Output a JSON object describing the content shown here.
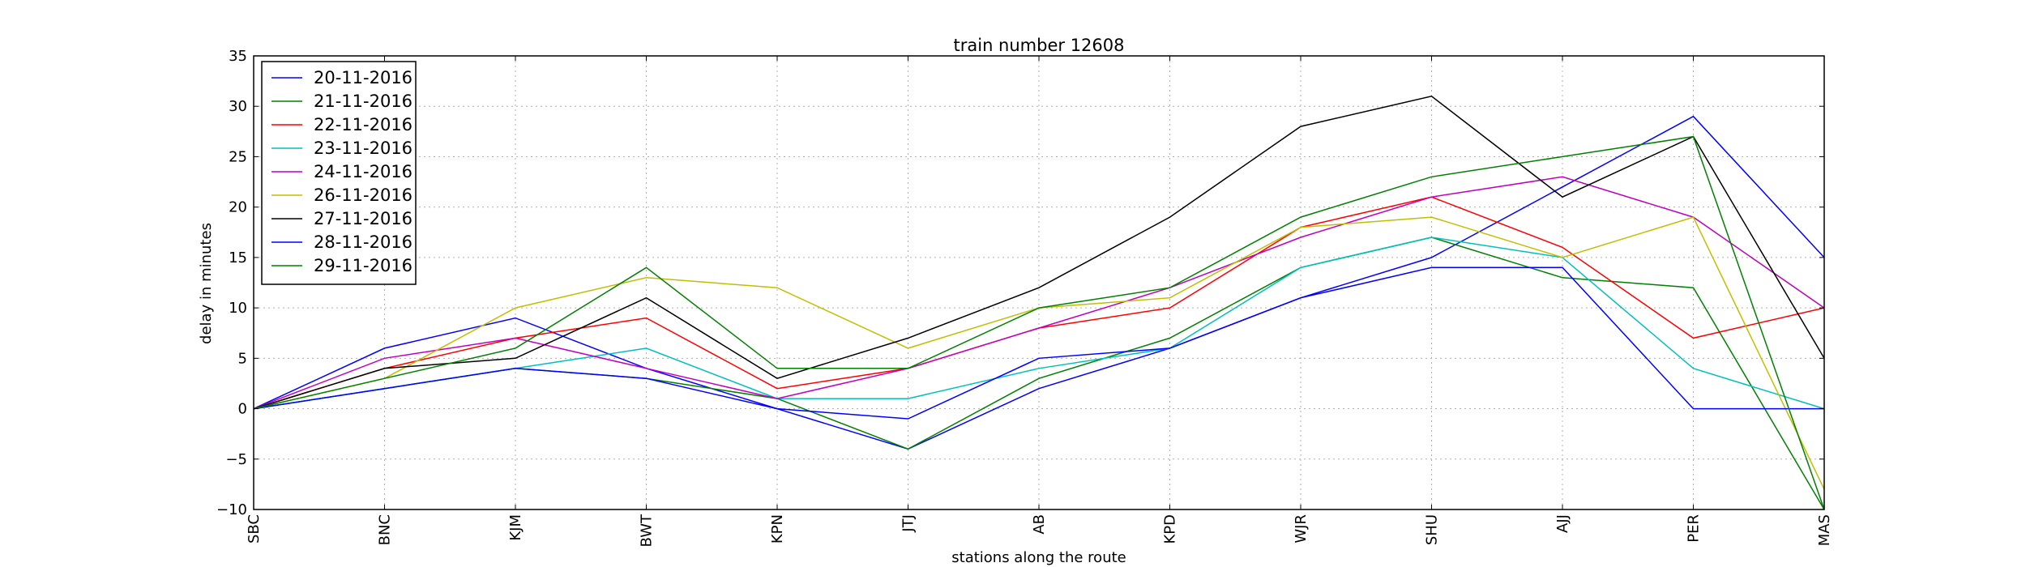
{
  "chart_data": {
    "type": "line",
    "title": "train number 12608",
    "xlabel": "stations along the route",
    "ylabel": "delay in minutes",
    "categories": [
      "SBC",
      "BNC",
      "KJM",
      "BWT",
      "KPN",
      "JTJ",
      "AB",
      "KPD",
      "WJR",
      "SHU",
      "AJJ",
      "PER",
      "MAS"
    ],
    "ylim": [
      -10,
      35
    ],
    "yticks": [
      -10,
      -5,
      0,
      5,
      10,
      15,
      20,
      25,
      30,
      35
    ],
    "ytick_labels": [
      "−10",
      "−5",
      "0",
      "5",
      "10",
      "15",
      "20",
      "25",
      "30",
      "35"
    ],
    "grid": true,
    "legend_position": "top-left",
    "series": [
      {
        "name": "20-11-2016",
        "color": "#0000ff",
        "values": [
          0,
          6,
          9,
          4,
          0,
          -4,
          2,
          6,
          11,
          15,
          22,
          29,
          15
        ]
      },
      {
        "name": "21-11-2016",
        "color": "#008000",
        "values": [
          0,
          2,
          4,
          3,
          1,
          -4,
          3,
          7,
          14,
          17,
          13,
          12,
          -10
        ]
      },
      {
        "name": "22-11-2016",
        "color": "#ff0000",
        "values": [
          0,
          4,
          7,
          9,
          2,
          4,
          8,
          10,
          18,
          21,
          16,
          7,
          10
        ]
      },
      {
        "name": "23-11-2016",
        "color": "#00bfbf",
        "values": [
          0,
          2,
          4,
          6,
          1,
          1,
          4,
          6,
          14,
          17,
          15,
          4,
          0
        ]
      },
      {
        "name": "24-11-2016",
        "color": "#bf00bf",
        "values": [
          0,
          5,
          7,
          4,
          1,
          4,
          8,
          12,
          17,
          21,
          23,
          19,
          10
        ]
      },
      {
        "name": "26-11-2016",
        "color": "#bfbf00",
        "values": [
          0,
          3,
          10,
          13,
          12,
          6,
          10,
          11,
          18,
          19,
          15,
          19,
          -8
        ]
      },
      {
        "name": "27-11-2016",
        "color": "#000000",
        "values": [
          0,
          4,
          5,
          11,
          3,
          7,
          12,
          19,
          28,
          31,
          21,
          27,
          5
        ]
      },
      {
        "name": "28-11-2016",
        "color": "#0000ff",
        "values": [
          0,
          2,
          4,
          3,
          0,
          -1,
          5,
          6,
          11,
          14,
          14,
          0,
          0
        ]
      },
      {
        "name": "29-11-2016",
        "color": "#008000",
        "values": [
          0,
          3,
          6,
          14,
          4,
          4,
          10,
          12,
          19,
          23,
          25,
          27,
          -10
        ]
      }
    ]
  }
}
